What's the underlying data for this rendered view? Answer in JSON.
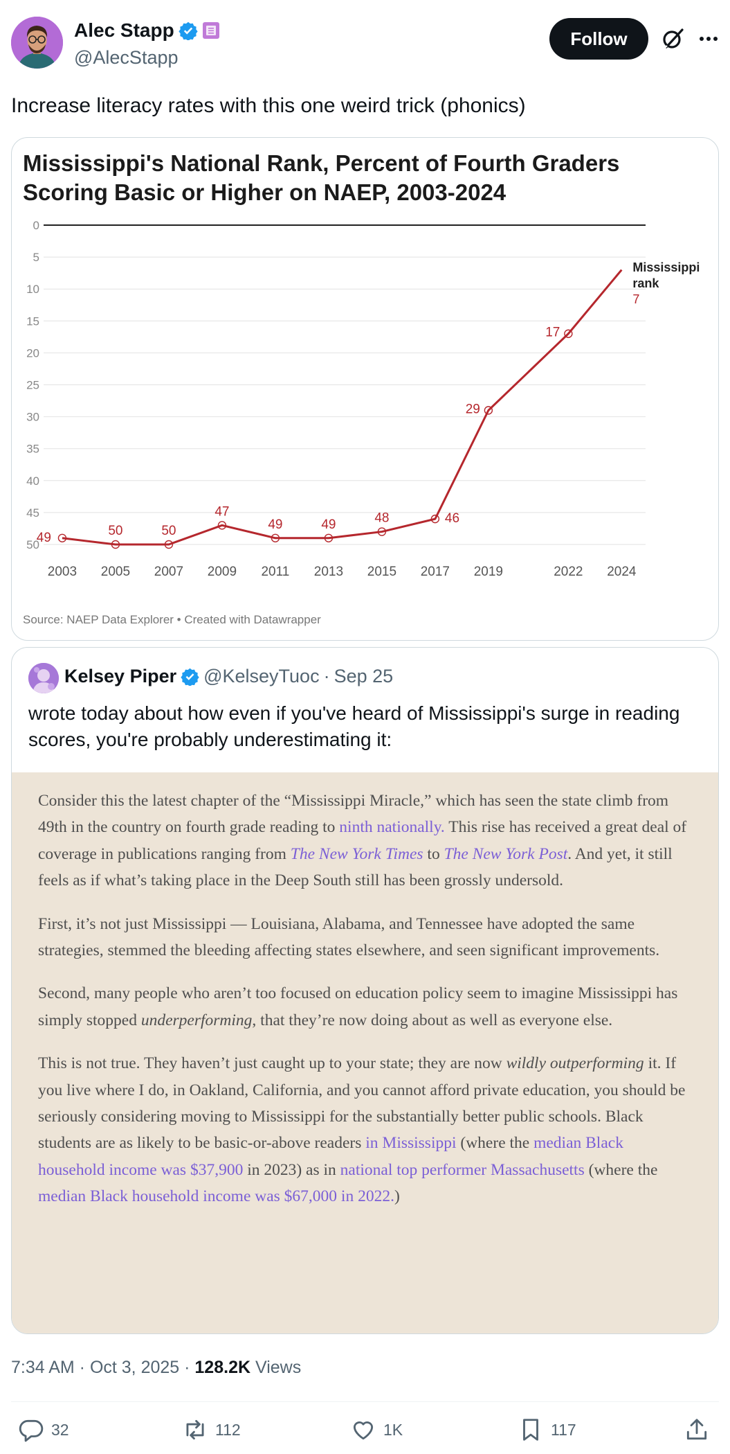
{
  "author": {
    "name": "Alec Stapp",
    "handle": "@AlecStapp",
    "follow_label": "Follow"
  },
  "tweet": {
    "text": "Increase literacy rates with this one weird trick (phonics)",
    "time": "7:34 AM · Oct 3, 2025 · ",
    "views_count": "128.2K",
    "views_label": " Views"
  },
  "chart_data": {
    "type": "line",
    "title": "Mississippi's National Rank, Percent of Fourth Graders Scoring Basic or Higher on NAEP, 2003-2024",
    "source": "Source: NAEP Data Explorer • Created with Datawrapper",
    "x": [
      2003,
      2005,
      2007,
      2009,
      2011,
      2013,
      2015,
      2017,
      2019,
      2022,
      2024
    ],
    "x_labels": [
      "2003",
      "2005",
      "2007",
      "2009",
      "2011",
      "2013",
      "2015",
      "2017",
      "2019",
      "2022",
      "2024"
    ],
    "series": [
      {
        "name": "Mississippi rank",
        "values": [
          49,
          50,
          50,
          47,
          49,
          49,
          48,
          46,
          29,
          17,
          7
        ]
      }
    ],
    "data_labels": [
      "49",
      "50",
      "50",
      "47",
      "49",
      "49",
      "48",
      "46",
      "29",
      "17",
      "7"
    ],
    "y_ticks": [
      0,
      5,
      10,
      15,
      20,
      25,
      30,
      35,
      40,
      45,
      50
    ],
    "y_tick_labels": [
      "0",
      "5",
      "10",
      "15",
      "20",
      "25",
      "30",
      "35",
      "40",
      "45",
      "50"
    ],
    "ylim": [
      0,
      50
    ],
    "y_inverted": true,
    "end_label_line1": "Mississippi",
    "end_label_line2": "rank",
    "end_value": "7",
    "line_color": "#b5272d",
    "xlabel": "",
    "ylabel": ""
  },
  "quote": {
    "name": "Kelsey Piper",
    "handle": "@KelseyTuoc",
    "dot": "·",
    "date": "Sep 25",
    "text": "wrote today about how even if you've heard of Mississippi's surge in reading scores, you're probably underestimating it:",
    "p1_a": "Consider this the latest chapter of the “Mississippi Miracle,” which has seen the state climb from 49th in the country on fourth grade reading to ",
    "p1_link1": "ninth nationally.",
    "p1_b": " This rise has received a great deal of coverage in publications ranging from ",
    "p1_link2": "The New York Times",
    "p1_c": " to ",
    "p1_link3": "The New York Post",
    "p1_d": ". And yet, it still feels as if what’s taking place in the Deep South still has been grossly undersold.",
    "p2": "First, it’s not just Mississippi — Louisiana, Alabama, and Tennessee have adopted the same strategies, stemmed the bleeding affecting states elsewhere, and seen significant improvements.",
    "p3_a": "Second, many people who aren’t too focused on education policy seem to imagine Mississippi has simply stopped ",
    "p3_it": "underperforming",
    "p3_b": ", that they’re now doing about as well as everyone else.",
    "p4_a": "This is not true. They haven’t just caught up to your state; they are now ",
    "p4_it1": "wildly outperforming",
    "p4_b": " it. If you live where I do, in Oakland, California, and you cannot afford private education, you should be seriously considering moving to Mississippi for the substantially better public schools. Black students are as likely to be basic-or-above readers ",
    "p4_link1": "in Mississippi",
    "p4_c": " (where the ",
    "p4_link2": "median Black household income was $37,900",
    "p4_d": " in 2023) as in ",
    "p4_link3": "national top performer Massachusetts",
    "p4_e": " (where the ",
    "p4_link4": "median Black household income was $67,000 in 2022.",
    "p4_f": ")"
  },
  "actions": {
    "replies": "32",
    "reposts": "112",
    "likes": "1K",
    "bookmarks": "117"
  },
  "icons": {
    "verified": "verified-badge-icon",
    "affiliate": "affiliate-badge-icon",
    "grok": "grok-icon",
    "more": "more-icon",
    "reply": "reply-icon",
    "repost": "repost-icon",
    "like": "like-icon",
    "bookmark": "bookmark-icon",
    "share": "share-icon"
  },
  "colors": {
    "accent": "#1d9bf0",
    "link": "#7b5fd6",
    "excerpt_bg": "#ede4d7",
    "line": "#b5272d"
  }
}
